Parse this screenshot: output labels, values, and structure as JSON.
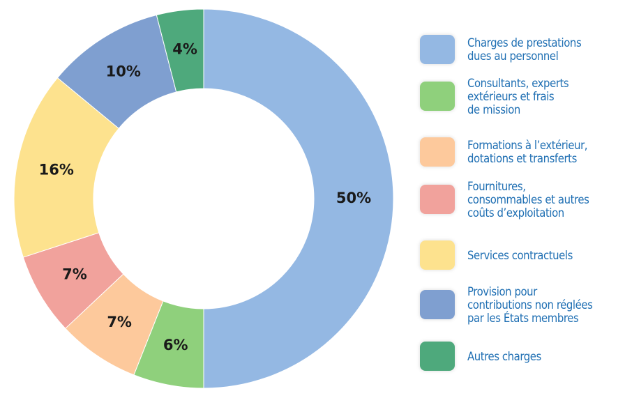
{
  "chart_data": {
    "type": "donut",
    "categories": [
      "Charges de prestations\ndues au personnel",
      "Consultants, experts\nextérieurs et frais\nde mission",
      "Formations à l’extérieur,\ndotations et transferts",
      "Fournitures,\nconsommables et autres\ncoûts d’exploitation",
      "Services contractuels",
      "Provision pour\ncontributions non réglées\npar les États membres",
      "Autres charges"
    ],
    "values": [
      50,
      6,
      7,
      7,
      16,
      10,
      4
    ],
    "value_labels": [
      "50%",
      "6%",
      "7%",
      "7%",
      "16%",
      "10%",
      "4%"
    ],
    "colors": [
      "#94b8e3",
      "#8fd07c",
      "#fdc99c",
      "#f1a29c",
      "#fde28e",
      "#7f9fd0",
      "#4ea97c"
    ],
    "legend": "right"
  }
}
